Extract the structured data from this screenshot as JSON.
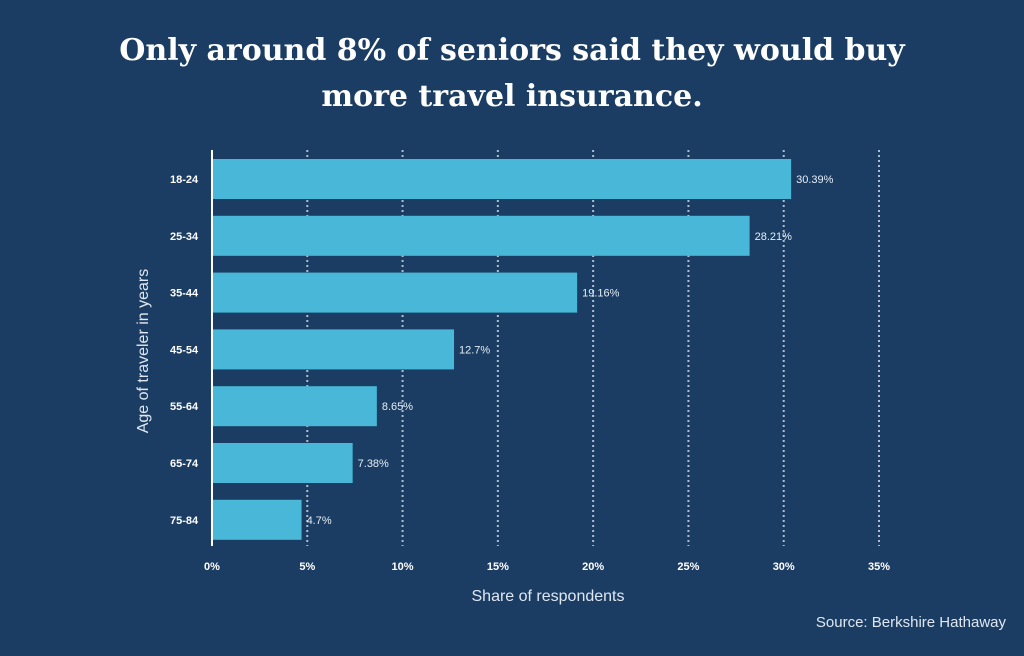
{
  "title": {
    "line1": "Only around 8% of seniors said they would buy",
    "line2": "more travel insurance."
  },
  "source": "Source: Berkshire Hathaway",
  "colors": {
    "background": "#1b3d63",
    "bar": "#49b8d8",
    "text": "#ffffff",
    "grid": "#c9d5e2"
  },
  "chart_data": {
    "type": "bar",
    "orientation": "horizontal",
    "categories": [
      "18-24",
      "25-34",
      "35-44",
      "45-54",
      "55-64",
      "65-74",
      "75-84"
    ],
    "values": [
      30.39,
      28.21,
      19.16,
      12.7,
      8.65,
      7.38,
      4.7
    ],
    "value_labels": [
      "30.39%",
      "28.21%",
      "19.16%",
      "12.7%",
      "8.65%",
      "7.38%",
      "4.7%"
    ],
    "xlabel": "Share of respondents",
    "ylabel": "Age of traveler in years",
    "xlim": [
      0,
      35
    ],
    "xticks": [
      0,
      5,
      10,
      15,
      20,
      25,
      30,
      35
    ],
    "xtick_labels": [
      "0%",
      "5%",
      "10%",
      "15%",
      "20%",
      "25%",
      "30%",
      "35%"
    ],
    "grid": "vertical dotted",
    "legend": "none"
  }
}
